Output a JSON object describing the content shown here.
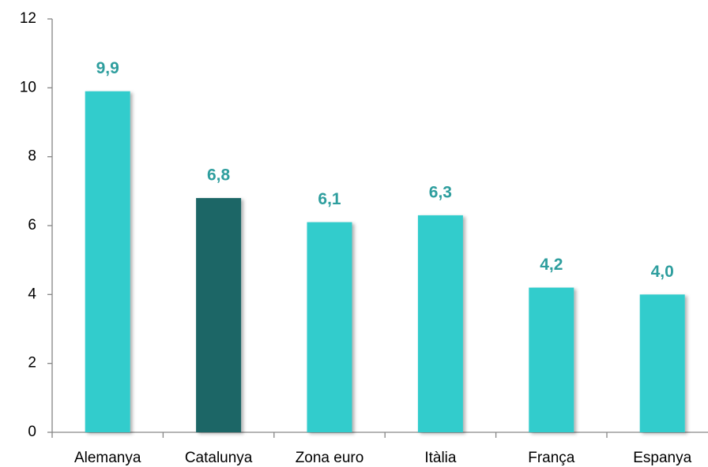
{
  "chart_data": {
    "type": "bar",
    "categories": [
      "Alemanya",
      "Catalunya",
      "Zona euro",
      "Itàlia",
      "França",
      "Espanya"
    ],
    "values": [
      9.9,
      6.8,
      6.1,
      6.3,
      4.2,
      4.0
    ],
    "value_labels": [
      "9,9",
      "6,8",
      "6,1",
      "6,3",
      "4,2",
      "4,0"
    ],
    "colors": [
      "#33cccc",
      "#1a6666",
      "#33cccc",
      "#33cccc",
      "#33cccc",
      "#33cccc"
    ],
    "ylim": [
      0,
      12
    ],
    "yticks": [
      0,
      2,
      4,
      6,
      8,
      10,
      12
    ],
    "grid": false
  }
}
